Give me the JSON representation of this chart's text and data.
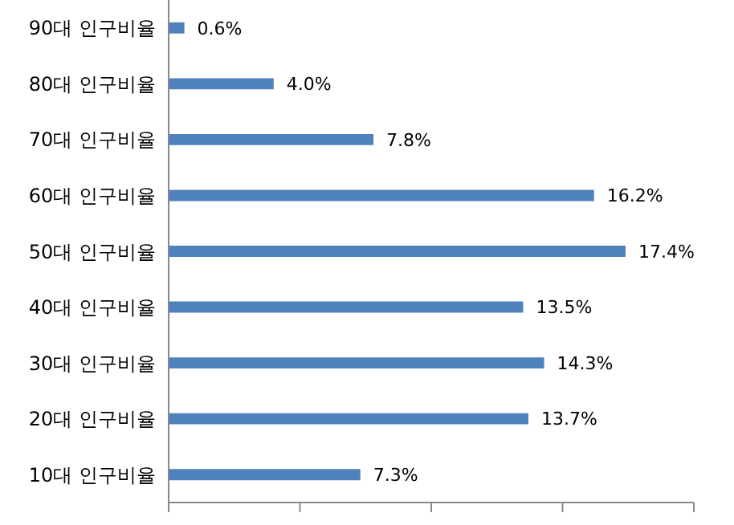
{
  "chart_data": {
    "type": "bar",
    "orientation": "horizontal",
    "categories": [
      "90대 인구비율",
      "80대 인구비율",
      "70대 인구비율",
      "60대 인구비율",
      "50대 인구비율",
      "40대 인구비율",
      "30대 인구비율",
      "20대 인구비율",
      "10대 인구비율"
    ],
    "values": [
      0.6,
      4.0,
      7.8,
      16.2,
      17.4,
      13.5,
      14.3,
      13.7,
      7.3
    ],
    "value_labels": [
      "0.6%",
      "4.0%",
      "7.8%",
      "16.2%",
      "17.4%",
      "13.5%",
      "14.3%",
      "13.7%",
      "7.3%"
    ],
    "color": "#4f81bd",
    "xlim": [
      0,
      20
    ],
    "xticks": [
      {
        "value": 0,
        "label": null
      },
      {
        "value": 5,
        "label": null
      },
      {
        "value": 10,
        "label": null
      },
      {
        "value": 15,
        "label": null
      },
      {
        "value": 20,
        "label": null
      }
    ],
    "tick_labels": "y"
  }
}
